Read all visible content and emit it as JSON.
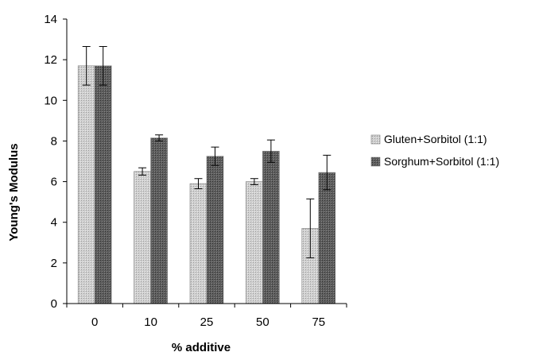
{
  "chart_data": {
    "type": "bar",
    "categories": [
      "0",
      "10",
      "25",
      "50",
      "75"
    ],
    "series": [
      {
        "name": "Gluten+Sorbitol (1:1)",
        "values": [
          11.7,
          6.5,
          5.9,
          6.0,
          3.7
        ],
        "errors": [
          0.95,
          0.18,
          0.25,
          0.15,
          1.45
        ],
        "color": "#c8c8c8"
      },
      {
        "name": "Sorghum+Sorbitol (1:1)",
        "values": [
          11.7,
          8.15,
          7.25,
          7.5,
          6.45
        ],
        "errors": [
          0.95,
          0.15,
          0.45,
          0.55,
          0.85
        ],
        "color": "#5a5a5a"
      }
    ],
    "y_ticks": [
      "0",
      "2",
      "4",
      "6",
      "8",
      "10",
      "12",
      "14"
    ],
    "ylim": [
      0,
      14
    ],
    "xlabel": "% additive",
    "ylabel": "Young's Modulus",
    "title": "",
    "grid": false,
    "legend_position": "right"
  }
}
